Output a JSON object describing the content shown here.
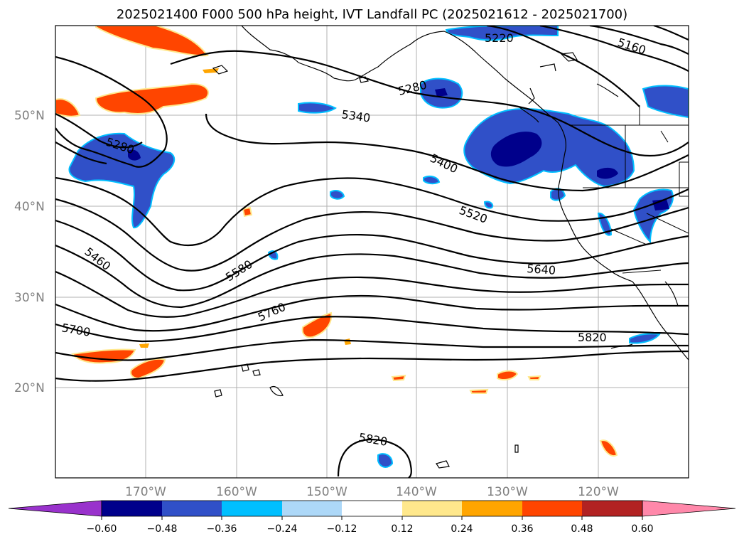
{
  "title": "2025021400 F000 500 hPa height, IVT Landfall PC (2025021612 - 2025021700)",
  "lat_labels": [
    "50°N",
    "40°N",
    "30°N",
    "20°N"
  ],
  "lon_labels": [
    "170°W",
    "160°W",
    "150°W",
    "140°W",
    "130°W",
    "120°W"
  ],
  "contour_labels": [
    "5220",
    "5160",
    "5280",
    "5340",
    "5280",
    "5400",
    "5520",
    "5460",
    "5580",
    "5640",
    "5760",
    "5700",
    "5820",
    "5820"
  ],
  "colorbar": {
    "ticks": [
      "−0.60",
      "−0.48",
      "−0.36",
      "−0.24",
      "−0.12",
      "0.12",
      "0.24",
      "0.36",
      "0.48",
      "0.60"
    ],
    "colors": [
      "#9932cc",
      "#00008b",
      "#3050c8",
      "#00bfff",
      "#add8f8",
      "#ffffff",
      "#ffe88c",
      "#ffa500",
      "#ff4500",
      "#b22222",
      "#ff88aa"
    ]
  },
  "colors": {
    "gridline": "#b0b0b0",
    "contour": "#000000",
    "coast": "#000000"
  }
}
